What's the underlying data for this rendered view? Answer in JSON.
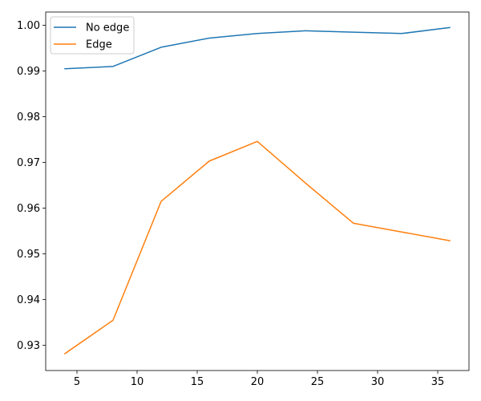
{
  "chart_data": {
    "type": "line",
    "title": "",
    "xlabel": "",
    "ylabel": "",
    "xlim": [
      2.4,
      37.6
    ],
    "ylim": [
      0.9245,
      1.0029
    ],
    "x_ticks": [
      5,
      10,
      15,
      20,
      25,
      30,
      35
    ],
    "x_tick_labels": [
      "5",
      "10",
      "15",
      "20",
      "25",
      "30",
      "35"
    ],
    "y_ticks": [
      0.93,
      0.94,
      0.95,
      0.96,
      0.97,
      0.98,
      0.99,
      1.0
    ],
    "y_tick_labels": [
      "0.93",
      "0.94",
      "0.95",
      "0.96",
      "0.97",
      "0.98",
      "0.99",
      "1.00"
    ],
    "grid": false,
    "legend_position": "upper-left",
    "x": [
      4,
      8,
      12,
      16,
      20,
      24,
      28,
      32,
      36
    ],
    "series": [
      {
        "name": "No edge",
        "color": "#1f77b4",
        "values": [
          0.9905,
          0.991,
          0.9952,
          0.9972,
          0.9982,
          0.9988,
          0.9985,
          0.9982,
          0.9995
        ]
      },
      {
        "name": "Edge",
        "color": "#ff7f0e",
        "values": [
          0.9282,
          0.9355,
          0.9615,
          0.9703,
          0.9746,
          0.9655,
          0.9567,
          0.9548,
          0.9529
        ]
      }
    ]
  }
}
